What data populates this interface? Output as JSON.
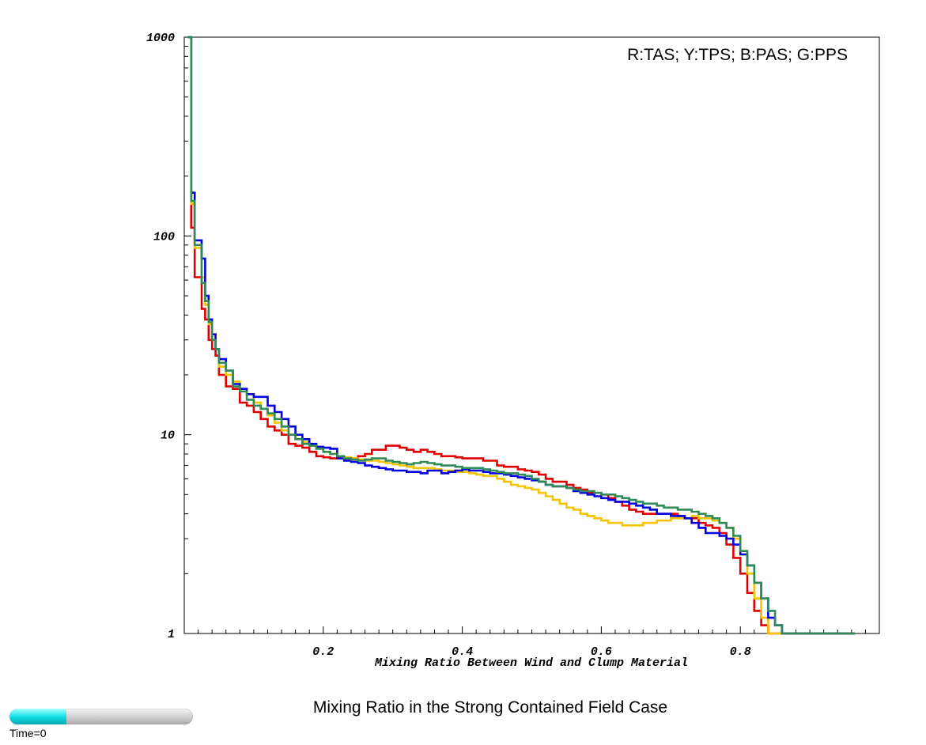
{
  "chart_data": {
    "type": "line",
    "step": true,
    "title": "Mixing Ratio in the Strong Contained Field Case",
    "xlabel": "Mixing Ratio Between Wind and Clump Material",
    "ylabel": "",
    "legend_text": "R:TAS; Y:TPS; B:PAS; G:PPS",
    "legend_placement": "top-right",
    "xlim": [
      0,
      1
    ],
    "ylim": [
      1,
      1000
    ],
    "y_scale": "log",
    "grid": false,
    "x_ticks": [
      "0.2",
      "0.4",
      "0.6",
      "0.8"
    ],
    "y_ticks": [
      "1",
      "10",
      "100",
      "1000"
    ],
    "series": [
      {
        "color": "#e00000",
        "x": [
          0.005,
          0.01,
          0.015,
          0.02,
          0.025,
          0.03,
          0.035,
          0.04,
          0.045,
          0.05,
          0.06,
          0.07,
          0.08,
          0.09,
          0.1,
          0.11,
          0.12,
          0.13,
          0.14,
          0.15,
          0.16,
          0.17,
          0.18,
          0.19,
          0.2,
          0.21,
          0.22,
          0.23,
          0.24,
          0.25,
          0.26,
          0.27,
          0.28,
          0.29,
          0.3,
          0.31,
          0.32,
          0.33,
          0.34,
          0.35,
          0.36,
          0.37,
          0.38,
          0.39,
          0.4,
          0.41,
          0.42,
          0.43,
          0.44,
          0.45,
          0.46,
          0.47,
          0.48,
          0.49,
          0.5,
          0.51,
          0.52,
          0.53,
          0.54,
          0.55,
          0.56,
          0.57,
          0.58,
          0.59,
          0.6,
          0.61,
          0.62,
          0.63,
          0.64,
          0.65,
          0.66,
          0.67,
          0.68,
          0.69,
          0.7,
          0.71,
          0.72,
          0.73,
          0.74,
          0.75,
          0.76,
          0.77,
          0.78,
          0.79,
          0.8,
          0.81,
          0.82,
          0.83,
          0.84,
          0.85,
          0.86,
          0.87,
          0.88,
          0.89,
          0.9,
          0.905,
          0.91,
          0.915,
          0.92,
          0.925,
          0.93,
          0.935,
          0.94,
          0.945,
          0.95,
          0.955,
          0.96
        ],
        "y": [
          1000,
          110,
          62,
          62,
          43,
          38,
          30,
          27,
          25,
          20,
          17.5,
          17,
          14.5,
          14,
          13,
          12,
          11,
          10.5,
          10,
          9,
          8.8,
          8.6,
          8.2,
          7.8,
          7.7,
          7.6,
          7.6,
          7.5,
          7.6,
          7.8,
          8,
          8.4,
          8.4,
          8.8,
          8.8,
          8.6,
          8.4,
          8.2,
          8.4,
          8.2,
          8,
          7.8,
          7.8,
          7.7,
          7.6,
          7.6,
          7.6,
          7.4,
          7.4,
          7,
          6.9,
          6.9,
          6.7,
          6.6,
          6.5,
          6.3,
          6,
          5.8,
          5.8,
          5.6,
          5.4,
          5.3,
          5.1,
          5.1,
          5,
          4.8,
          4.6,
          4.4,
          4.2,
          4.1,
          4,
          4,
          4,
          4,
          4,
          3.9,
          3.8,
          3.8,
          3.6,
          3.5,
          3.4,
          3.2,
          2.8,
          2.4,
          2,
          1.6,
          1.3,
          1.1,
          1,
          1,
          1,
          1,
          1,
          1,
          1,
          1,
          1,
          1,
          1,
          1,
          1,
          1,
          1,
          1,
          1,
          1,
          1
        ],
        "name": ""
      },
      {
        "color": "#f5c400",
        "x": [
          0.005,
          0.01,
          0.015,
          0.02,
          0.025,
          0.03,
          0.035,
          0.04,
          0.045,
          0.05,
          0.06,
          0.07,
          0.08,
          0.09,
          0.1,
          0.11,
          0.12,
          0.13,
          0.14,
          0.15,
          0.16,
          0.17,
          0.18,
          0.19,
          0.2,
          0.21,
          0.22,
          0.23,
          0.24,
          0.25,
          0.26,
          0.27,
          0.28,
          0.29,
          0.3,
          0.31,
          0.32,
          0.33,
          0.34,
          0.35,
          0.36,
          0.37,
          0.38,
          0.39,
          0.4,
          0.41,
          0.42,
          0.43,
          0.44,
          0.45,
          0.46,
          0.47,
          0.48,
          0.49,
          0.5,
          0.51,
          0.52,
          0.53,
          0.54,
          0.55,
          0.56,
          0.57,
          0.58,
          0.59,
          0.6,
          0.61,
          0.62,
          0.63,
          0.64,
          0.65,
          0.66,
          0.67,
          0.68,
          0.69,
          0.7,
          0.71,
          0.72,
          0.73,
          0.74,
          0.75,
          0.76,
          0.77,
          0.78,
          0.79,
          0.8,
          0.81,
          0.82,
          0.83,
          0.84,
          0.85,
          0.86,
          0.87,
          0.88,
          0.89,
          0.9,
          0.905,
          0.91,
          0.915,
          0.92,
          0.925,
          0.93,
          0.935,
          0.94,
          0.945,
          0.95,
          0.955,
          0.96
        ],
        "y": [
          1000,
          145,
          87,
          87,
          62,
          45,
          36,
          30,
          27,
          22,
          20,
          18.5,
          17,
          16,
          14.5,
          13.5,
          12.5,
          11.5,
          10.5,
          10,
          9.5,
          9.2,
          8.8,
          8.5,
          8.2,
          8,
          7.8,
          7.7,
          7.6,
          7.5,
          7.4,
          7.4,
          7.3,
          7.2,
          7.1,
          7,
          6.9,
          6.8,
          6.8,
          6.8,
          6.7,
          6.6,
          6.6,
          6.5,
          6.5,
          6.4,
          6.3,
          6.2,
          6.2,
          6,
          5.8,
          5.6,
          5.5,
          5.4,
          5.3,
          5.1,
          4.9,
          4.7,
          4.5,
          4.3,
          4.2,
          4,
          3.9,
          3.8,
          3.7,
          3.6,
          3.6,
          3.5,
          3.5,
          3.5,
          3.6,
          3.6,
          3.7,
          3.7,
          3.8,
          3.8,
          3.8,
          3.9,
          3.8,
          3.8,
          3.7,
          3.6,
          3.4,
          3,
          2.5,
          2,
          1.5,
          1.2,
          1,
          1,
          1,
          1,
          1,
          1,
          1,
          1,
          1,
          1,
          1,
          1,
          1,
          1,
          1,
          1,
          1,
          1,
          1
        ],
        "name": ""
      },
      {
        "color": "#0000e0",
        "x": [
          0.005,
          0.01,
          0.015,
          0.02,
          0.025,
          0.03,
          0.035,
          0.04,
          0.045,
          0.05,
          0.06,
          0.07,
          0.08,
          0.09,
          0.1,
          0.11,
          0.12,
          0.13,
          0.14,
          0.15,
          0.16,
          0.17,
          0.18,
          0.19,
          0.2,
          0.21,
          0.22,
          0.23,
          0.24,
          0.25,
          0.26,
          0.27,
          0.28,
          0.29,
          0.3,
          0.31,
          0.32,
          0.33,
          0.34,
          0.35,
          0.36,
          0.37,
          0.38,
          0.39,
          0.4,
          0.41,
          0.42,
          0.43,
          0.44,
          0.45,
          0.46,
          0.47,
          0.48,
          0.49,
          0.5,
          0.51,
          0.52,
          0.53,
          0.54,
          0.55,
          0.56,
          0.57,
          0.58,
          0.59,
          0.6,
          0.61,
          0.62,
          0.63,
          0.64,
          0.65,
          0.66,
          0.67,
          0.68,
          0.69,
          0.7,
          0.71,
          0.72,
          0.73,
          0.74,
          0.75,
          0.76,
          0.77,
          0.78,
          0.79,
          0.8,
          0.81,
          0.82,
          0.83,
          0.84,
          0.85,
          0.86,
          0.87,
          0.88,
          0.89,
          0.9,
          0.905,
          0.91,
          0.915,
          0.92,
          0.925,
          0.93,
          0.935,
          0.94,
          0.945,
          0.95,
          0.955,
          0.96
        ],
        "y": [
          1000,
          165,
          95,
          95,
          77,
          50,
          38,
          32,
          27,
          24,
          21,
          18,
          17,
          16,
          15.5,
          15.5,
          14,
          13,
          12,
          11,
          10,
          9.5,
          9,
          8.7,
          8.6,
          8.5,
          7.6,
          7.4,
          7.3,
          7.2,
          7,
          6.9,
          6.8,
          6.7,
          6.6,
          6.6,
          6.5,
          6.5,
          6.4,
          6.6,
          6.6,
          6.4,
          6.5,
          6.6,
          6.7,
          6.6,
          6.6,
          6.5,
          6.4,
          6.4,
          6.3,
          6.2,
          6.1,
          6,
          5.9,
          5.8,
          5.6,
          5.5,
          5.5,
          5.4,
          5.2,
          5.1,
          5,
          4.9,
          4.8,
          4.7,
          4.6,
          4.6,
          4.5,
          4.4,
          4.3,
          4.2,
          4,
          4,
          3.9,
          3.9,
          3.8,
          3.6,
          3.4,
          3.2,
          3.2,
          3.1,
          3,
          2.8,
          2.5,
          2.2,
          1.8,
          1.5,
          1.2,
          1.1,
          1,
          1,
          1,
          1,
          1,
          1,
          1,
          1,
          1,
          1,
          1,
          1,
          1,
          1,
          1,
          1,
          1
        ],
        "name": ""
      },
      {
        "color": "#2e8b57",
        "x": [
          0.005,
          0.01,
          0.015,
          0.02,
          0.025,
          0.03,
          0.035,
          0.04,
          0.045,
          0.05,
          0.06,
          0.07,
          0.08,
          0.09,
          0.1,
          0.11,
          0.12,
          0.13,
          0.14,
          0.15,
          0.16,
          0.17,
          0.18,
          0.19,
          0.2,
          0.21,
          0.22,
          0.23,
          0.24,
          0.25,
          0.26,
          0.27,
          0.28,
          0.29,
          0.3,
          0.31,
          0.32,
          0.33,
          0.34,
          0.35,
          0.36,
          0.37,
          0.38,
          0.39,
          0.4,
          0.41,
          0.42,
          0.43,
          0.44,
          0.45,
          0.46,
          0.47,
          0.48,
          0.49,
          0.5,
          0.51,
          0.52,
          0.53,
          0.54,
          0.55,
          0.56,
          0.57,
          0.58,
          0.59,
          0.6,
          0.61,
          0.62,
          0.63,
          0.64,
          0.65,
          0.66,
          0.67,
          0.68,
          0.69,
          0.7,
          0.71,
          0.72,
          0.73,
          0.74,
          0.75,
          0.76,
          0.77,
          0.78,
          0.79,
          0.8,
          0.81,
          0.82,
          0.83,
          0.84,
          0.85,
          0.86,
          0.87,
          0.88,
          0.89,
          0.9,
          0.905,
          0.91,
          0.915,
          0.92,
          0.925,
          0.93,
          0.935,
          0.94,
          0.945,
          0.95,
          0.955,
          0.96
        ],
        "y": [
          1000,
          150,
          90,
          90,
          58,
          47,
          37,
          30,
          27,
          23,
          21,
          17.5,
          16.5,
          15,
          14,
          13.5,
          12.8,
          12,
          11,
          10,
          9.5,
          9,
          8.8,
          8.5,
          8.2,
          8,
          7.8,
          7.6,
          7.5,
          7.4,
          7.5,
          7.6,
          7.6,
          7.4,
          7.3,
          7.2,
          7.1,
          7.2,
          7.3,
          7.2,
          7.1,
          7,
          7,
          6.9,
          6.8,
          6.8,
          6.8,
          6.7,
          6.6,
          6.5,
          6.4,
          6.4,
          6.3,
          6.2,
          6,
          5.8,
          5.6,
          5.5,
          5.5,
          5.4,
          5.3,
          5.2,
          5.2,
          5.1,
          5,
          5,
          4.9,
          4.8,
          4.7,
          4.6,
          4.5,
          4.5,
          4.4,
          4.3,
          4.3,
          4.2,
          4.2,
          4.1,
          4,
          3.9,
          3.8,
          3.6,
          3.4,
          3.1,
          2.6,
          2.2,
          1.8,
          1.5,
          1.3,
          1.1,
          1,
          1,
          1,
          1,
          1,
          1,
          1,
          1,
          1,
          1,
          1,
          1,
          1,
          1,
          1,
          1,
          1
        ],
        "name": ""
      }
    ]
  },
  "time_slider": {
    "label": "Time=0",
    "value": 0.31
  }
}
